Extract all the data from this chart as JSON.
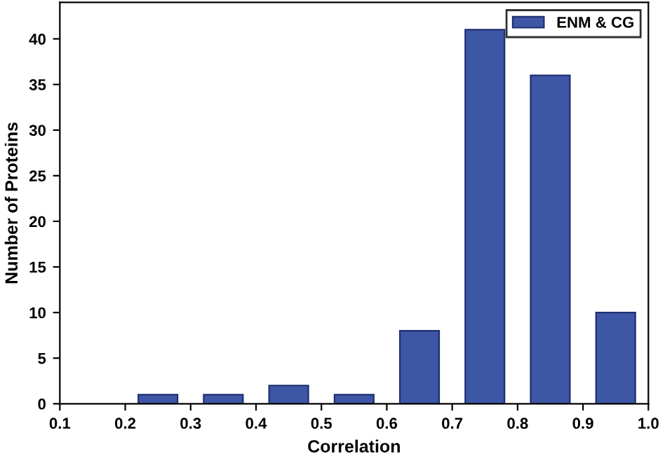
{
  "chart_data": {
    "type": "bar",
    "xlabel": "Correlation",
    "ylabel": "Number of Proteins",
    "x": [
      0.25,
      0.35,
      0.45,
      0.55,
      0.65,
      0.75,
      0.85,
      0.95
    ],
    "series": [
      {
        "name": "ENM & CG",
        "color": "#3d56a6",
        "values": [
          1,
          1,
          2,
          1,
          8,
          41,
          36,
          10
        ]
      }
    ],
    "xlim": [
      0.1,
      1.0
    ],
    "xticks": [
      0.1,
      0.2,
      0.3,
      0.4,
      0.5,
      0.6,
      0.7,
      0.8,
      0.9,
      {
        "value": 1.0,
        "label": "1.0"
      }
    ],
    "ylim": [
      0,
      44
    ],
    "yticks": [
      0,
      5,
      10,
      15,
      20,
      25,
      30,
      35,
      40
    ],
    "grid": false,
    "legend": "top right"
  }
}
